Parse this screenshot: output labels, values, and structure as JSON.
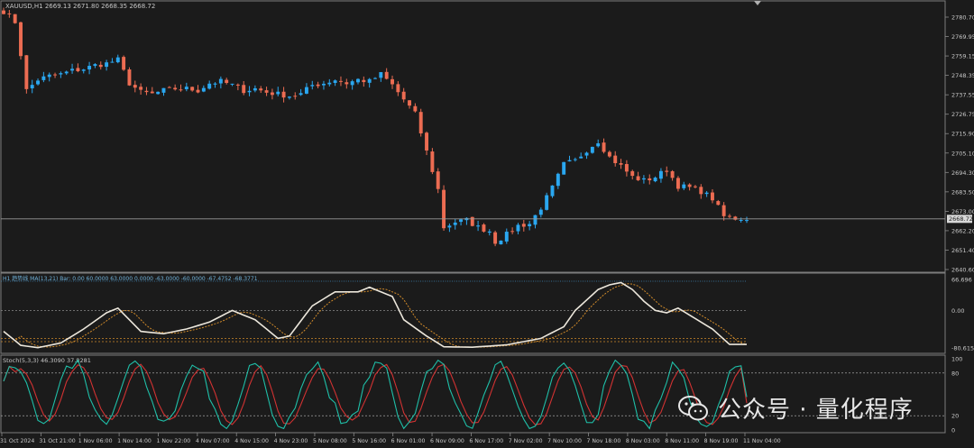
{
  "colors": {
    "background": "#1b1b1b",
    "panel_border": "#8a8a8a",
    "bull": "#2aa7f0",
    "bear": "#ec6c52",
    "axis_text": "#c8c8c8",
    "price_line": "#9a9a9a",
    "osc_main": "#ece7dc",
    "osc_signal": "#d08a2a",
    "stoch_main": "#1fbfa8",
    "stoch_signal": "#d23232",
    "level_line": "#bdbdbd"
  },
  "main_panel": {
    "symbol_info": "XAUUSD,H1  2669.13 2671.80 2668.35 2668.72",
    "price_labels": [
      "2780.70",
      "2769.95",
      "2759.15",
      "2748.35",
      "2737.55",
      "2726.75",
      "2715.90",
      "2705.10",
      "2694.30",
      "2683.50",
      "2673.00",
      "2662.20",
      "2651.40",
      "2640.60"
    ],
    "current_price": "2668.72"
  },
  "osc_panel": {
    "info": "H1 趋势线 MA(13,21)  Bar: 0.00 60.0000 63.0000 0.0000 -63.0000 -60.0000 -67.4752 -68.3771",
    "levels": [
      "66.696",
      "0.00",
      "-80.6152"
    ]
  },
  "stoch_panel": {
    "info": "Stoch(5,3,3) 46.3090 37.8281",
    "levels": [
      "100",
      "80",
      "20",
      "0"
    ]
  },
  "time_labels": [
    "31 Oct 2024",
    "31 Oct 21:00",
    "1 Nov 06:00",
    "1 Nov 14:00",
    "1 Nov 22:00",
    "4 Nov 07:00",
    "4 Nov 15:00",
    "4 Nov 23:00",
    "5 Nov 08:00",
    "5 Nov 16:00",
    "6 Nov 01:00",
    "6 Nov 09:00",
    "6 Nov 17:00",
    "7 Nov 02:00",
    "7 Nov 10:00",
    "7 Nov 18:00",
    "8 Nov 03:00",
    "8 Nov 11:00",
    "8 Nov 19:00",
    "11 Nov 04:00"
  ],
  "watermark": {
    "text": "公众号 · 量化程序",
    "icon": "wechat-icon"
  },
  "chart_data": {
    "type": "candlestick",
    "symbol": "XAUUSD",
    "timeframe": "H1",
    "ylim": [
      2640.6,
      2785.0
    ],
    "keypoints": [
      [
        0,
        2784
      ],
      [
        2,
        2778
      ],
      [
        3,
        2760
      ],
      [
        4,
        2740
      ],
      [
        6,
        2746
      ],
      [
        8,
        2748
      ],
      [
        10,
        2749
      ],
      [
        12,
        2751
      ],
      [
        14,
        2752
      ],
      [
        16,
        2754
      ],
      [
        18,
        2755
      ],
      [
        20,
        2757
      ],
      [
        22,
        2744
      ],
      [
        24,
        2739
      ],
      [
        26,
        2738
      ],
      [
        28,
        2740
      ],
      [
        30,
        2741
      ],
      [
        32,
        2741
      ],
      [
        34,
        2740
      ],
      [
        36,
        2744
      ],
      [
        38,
        2745
      ],
      [
        40,
        2743
      ],
      [
        42,
        2740
      ],
      [
        44,
        2741
      ],
      [
        46,
        2739
      ],
      [
        48,
        2738
      ],
      [
        50,
        2737
      ],
      [
        52,
        2738
      ],
      [
        54,
        2743
      ],
      [
        56,
        2744
      ],
      [
        58,
        2746
      ],
      [
        60,
        2744
      ],
      [
        62,
        2746
      ],
      [
        64,
        2745
      ],
      [
        66,
        2749
      ],
      [
        68,
        2743
      ],
      [
        70,
        2735
      ],
      [
        72,
        2727
      ],
      [
        74,
        2706
      ],
      [
        76,
        2685
      ],
      [
        77,
        2664
      ],
      [
        79,
        2667
      ],
      [
        81,
        2668
      ],
      [
        83,
        2664
      ],
      [
        85,
        2662
      ],
      [
        86,
        2656
      ],
      [
        88,
        2660
      ],
      [
        90,
        2665
      ],
      [
        92,
        2666
      ],
      [
        94,
        2675
      ],
      [
        96,
        2686
      ],
      [
        98,
        2699
      ],
      [
        100,
        2701
      ],
      [
        102,
        2707
      ],
      [
        104,
        2712
      ],
      [
        106,
        2703
      ],
      [
        108,
        2698
      ],
      [
        110,
        2692
      ],
      [
        112,
        2690
      ],
      [
        114,
        2692
      ],
      [
        116,
        2696
      ],
      [
        118,
        2687
      ],
      [
        120,
        2686
      ],
      [
        122,
        2684
      ],
      [
        124,
        2680
      ],
      [
        126,
        2670
      ],
      [
        128,
        2669
      ],
      [
        130,
        2669
      ]
    ],
    "oscillator": {
      "name": "趋势线 MA(13,21)",
      "levels": [
        66.696,
        0.0,
        -80.6152
      ],
      "keypoints": [
        [
          0,
          -45
        ],
        [
          3,
          -75
        ],
        [
          6,
          -80
        ],
        [
          10,
          -70
        ],
        [
          14,
          -40
        ],
        [
          18,
          -5
        ],
        [
          20,
          5
        ],
        [
          24,
          -45
        ],
        [
          28,
          -50
        ],
        [
          32,
          -40
        ],
        [
          36,
          -25
        ],
        [
          40,
          0
        ],
        [
          44,
          -20
        ],
        [
          48,
          -60
        ],
        [
          50,
          -55
        ],
        [
          54,
          10
        ],
        [
          58,
          40
        ],
        [
          62,
          40
        ],
        [
          64,
          50
        ],
        [
          68,
          30
        ],
        [
          70,
          -20
        ],
        [
          74,
          -55
        ],
        [
          77,
          -78
        ],
        [
          82,
          -79
        ],
        [
          88,
          -74
        ],
        [
          94,
          -60
        ],
        [
          98,
          -35
        ],
        [
          100,
          0
        ],
        [
          104,
          45
        ],
        [
          106,
          55
        ],
        [
          108,
          60
        ],
        [
          110,
          45
        ],
        [
          112,
          20
        ],
        [
          114,
          0
        ],
        [
          116,
          -5
        ],
        [
          118,
          5
        ],
        [
          120,
          -10
        ],
        [
          124,
          -40
        ],
        [
          127,
          -73
        ],
        [
          130,
          -73
        ]
      ]
    },
    "stochastic": {
      "name": "Stoch(5,3,3)",
      "main": 46.309,
      "signal": 37.8281,
      "levels": [
        100,
        80,
        20,
        0
      ]
    }
  }
}
